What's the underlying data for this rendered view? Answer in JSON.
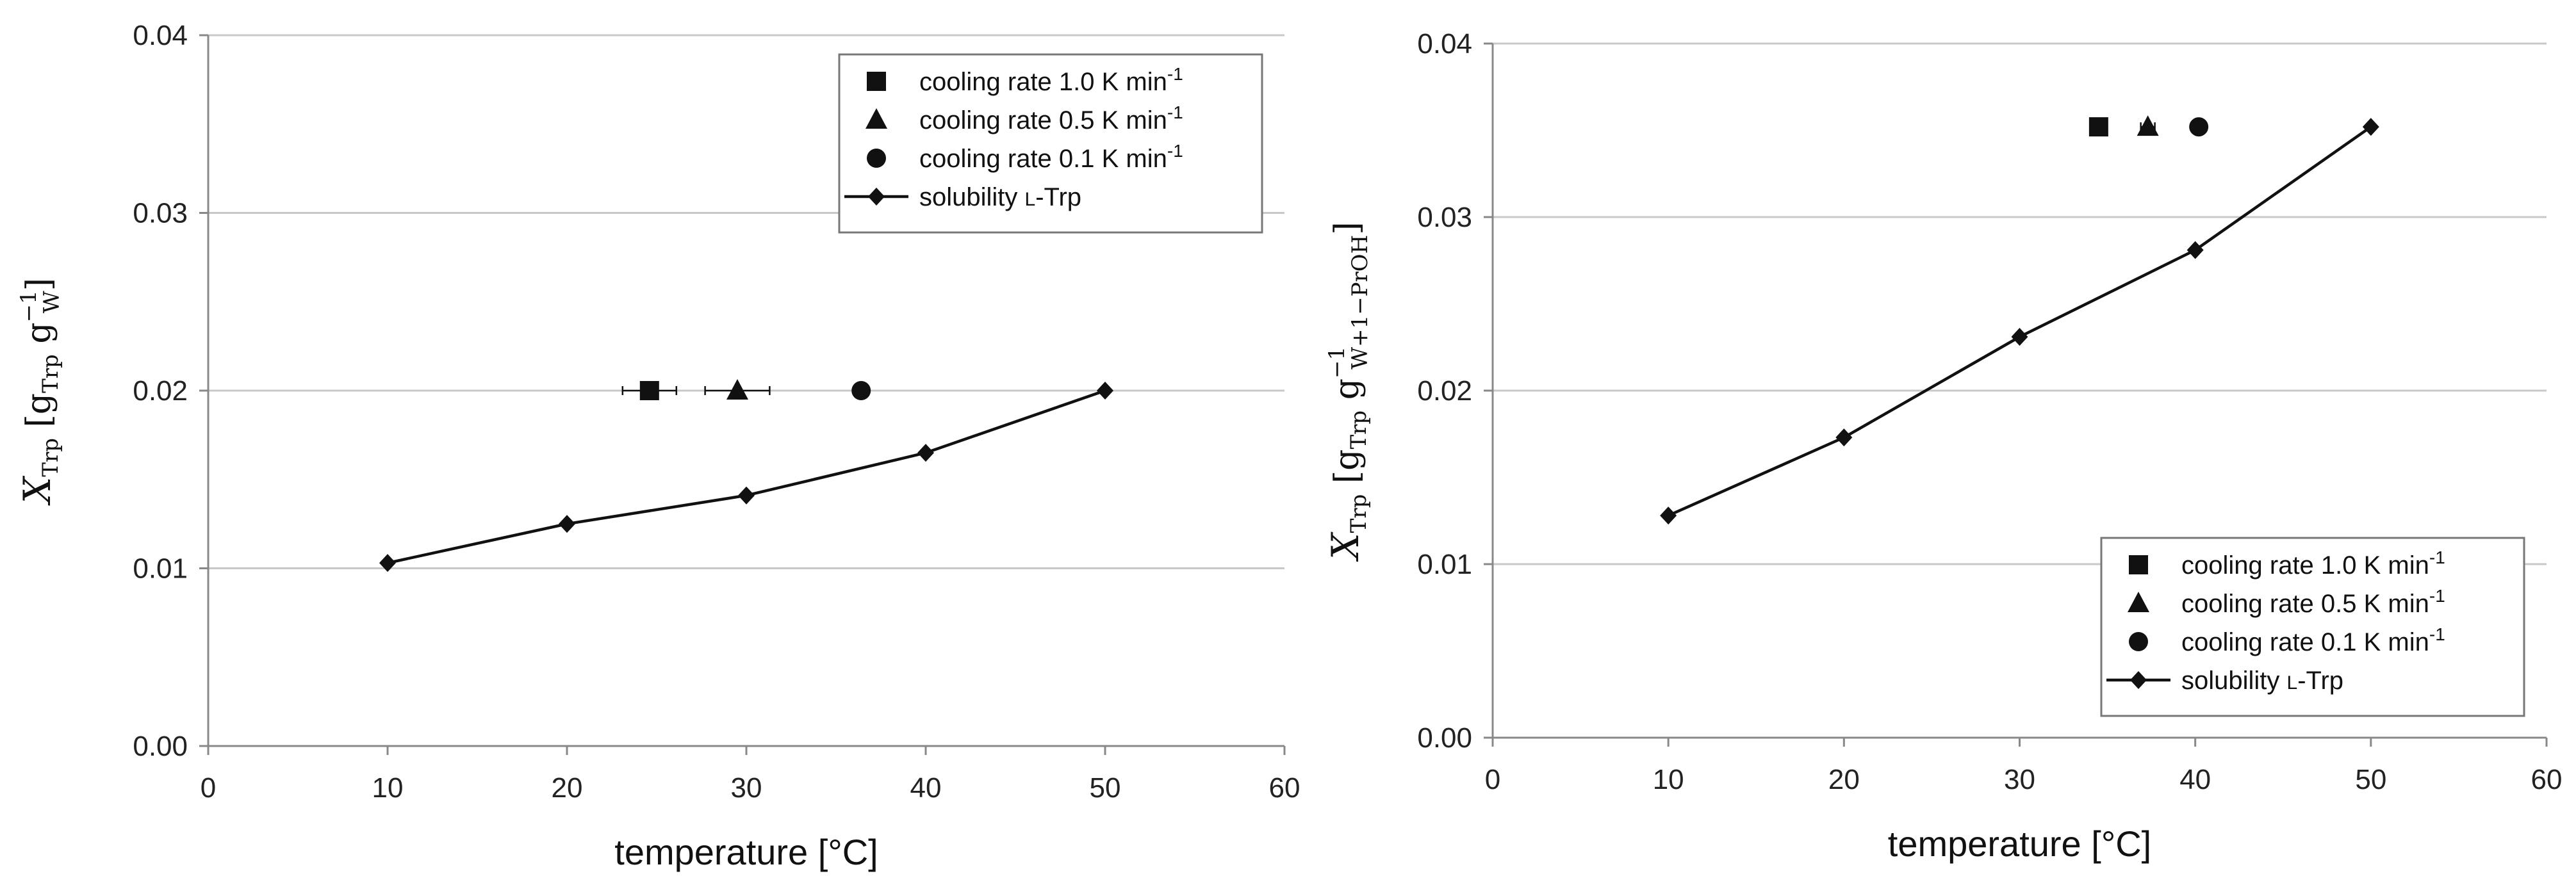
{
  "colors": {
    "series": "#111111",
    "grid": "#c8c8c8",
    "axis": "#888888",
    "legend_border": "#777777"
  },
  "chart_data": [
    {
      "type": "scatter",
      "xlabel": "temperature [°C]",
      "ylabel": {
        "symbol": "X",
        "symbol_sub": "Trp",
        "bracket_open": "[",
        "g1": "g",
        "g1_sub": "Trp",
        "g2": "g",
        "g2_sup": "−1",
        "g2_sub": "W",
        "bracket_close": "]"
      },
      "xlim": [
        0,
        60
      ],
      "ylim": [
        0,
        0.04
      ],
      "x_ticks": [
        0,
        10,
        20,
        30,
        40,
        50,
        60
      ],
      "x_tick_labels": [
        "0",
        "10",
        "20",
        "30",
        "40",
        "50",
        "60"
      ],
      "y_ticks": [
        0,
        0.01,
        0.02,
        0.03,
        0.04
      ],
      "y_tick_labels": [
        "0.00",
        "0.01",
        "0.02",
        "0.03",
        "0.04"
      ],
      "grid": "horizontal",
      "legend_position": "top-right",
      "series": [
        {
          "name": "cooling rate 1.0 K min-1",
          "label_main": "cooling rate 1.0 K min",
          "label_sup": "-1",
          "marker": "square",
          "x": [
            24.6
          ],
          "y": [
            0.02
          ],
          "xerr": [
            1.5
          ]
        },
        {
          "name": "cooling rate 0.5 K min-1",
          "label_main": "cooling rate 0.5 K min",
          "label_sup": "-1",
          "marker": "triangle",
          "x": [
            29.5
          ],
          "y": [
            0.02
          ],
          "xerr": [
            1.8
          ]
        },
        {
          "name": "cooling rate 0.1 K min-1",
          "label_main": "cooling rate 0.1 K min",
          "label_sup": "-1",
          "marker": "circle",
          "x": [
            36.4
          ],
          "y": [
            0.02
          ],
          "xerr": [
            0
          ]
        },
        {
          "name": "solubility L-Trp",
          "label_main": "solubility",
          "label_smallcaps": "L",
          "label_rest": "-Trp",
          "marker": "diamond",
          "line": true,
          "x": [
            10,
            20,
            30,
            40,
            50
          ],
          "y": [
            0.0103,
            0.0125,
            0.0141,
            0.0165,
            0.02
          ]
        }
      ]
    },
    {
      "type": "scatter",
      "xlabel": "temperature [°C]",
      "ylabel": {
        "symbol": "X",
        "symbol_sub": "Trp",
        "bracket_open": "[",
        "g1": "g",
        "g1_sub": "Trp",
        "g2": "g",
        "g2_sup": "−1",
        "g2_sub": "W+1−PrOH",
        "bracket_close": "]"
      },
      "xlim": [
        0,
        60
      ],
      "ylim": [
        0,
        0.04
      ],
      "x_ticks": [
        0,
        10,
        20,
        30,
        40,
        50,
        60
      ],
      "x_tick_labels": [
        "0",
        "10",
        "20",
        "30",
        "40",
        "50",
        "60"
      ],
      "y_ticks": [
        0,
        0.01,
        0.02,
        0.03,
        0.04
      ],
      "y_tick_labels": [
        "0.00",
        "0.01",
        "0.02",
        "0.03",
        "0.04"
      ],
      "grid": "horizontal",
      "legend_position": "bottom-right",
      "series": [
        {
          "name": "cooling rate 1.0 K min-1",
          "label_main": "cooling rate 1.0 K min",
          "label_sup": "-1",
          "marker": "square",
          "x": [
            34.5
          ],
          "y": [
            0.0352
          ],
          "xerr": [
            0.4
          ]
        },
        {
          "name": "cooling rate 0.5 K min-1",
          "label_main": "cooling rate 0.5 K min",
          "label_sup": "-1",
          "marker": "triangle",
          "x": [
            37.3
          ],
          "y": [
            0.0352
          ],
          "xerr": [
            0.4
          ]
        },
        {
          "name": "cooling rate 0.1 K min-1",
          "label_main": "cooling rate 0.1 K min",
          "label_sup": "-1",
          "marker": "circle",
          "x": [
            40.2
          ],
          "y": [
            0.0352
          ],
          "xerr": [
            0
          ]
        },
        {
          "name": "solubility L-Trp",
          "label_main": "solubility",
          "label_smallcaps": "L",
          "label_rest": "-Trp",
          "marker": "diamond",
          "line": true,
          "x": [
            10,
            20,
            30,
            40,
            50
          ],
          "y": [
            0.0128,
            0.0173,
            0.0231,
            0.0281,
            0.0352
          ]
        }
      ]
    }
  ]
}
